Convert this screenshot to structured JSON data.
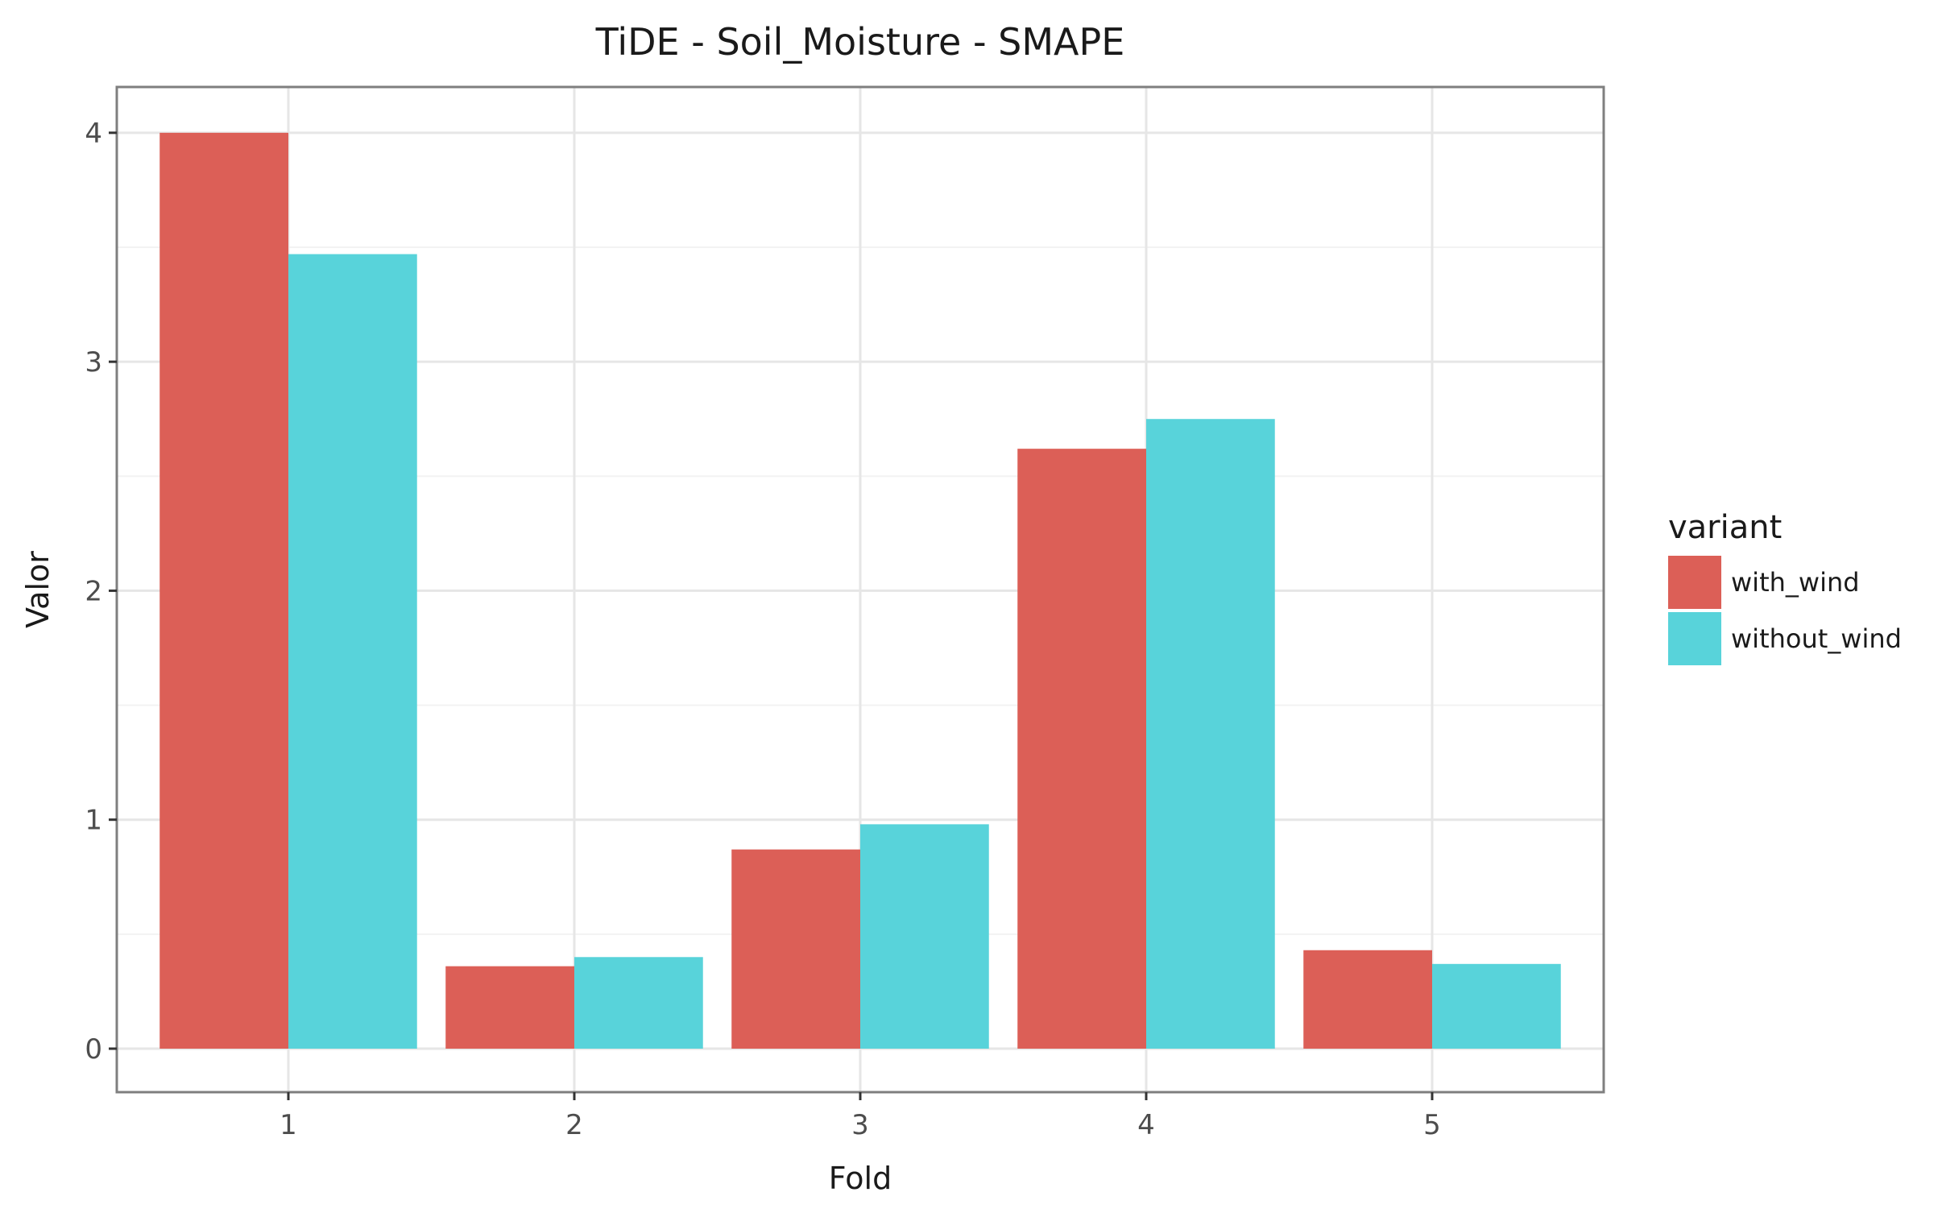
{
  "chart_data": {
    "type": "bar",
    "title": "TiDE - Soil_Moisture - SMAPE",
    "xlabel": "Fold",
    "ylabel": "Valor",
    "categories": [
      "1",
      "2",
      "3",
      "4",
      "5"
    ],
    "series": [
      {
        "name": "with_wind",
        "color": "#dc5f57",
        "values": [
          4.0,
          0.36,
          0.87,
          2.62,
          0.43
        ]
      },
      {
        "name": "without_wind",
        "color": "#58d3da",
        "values": [
          3.47,
          0.4,
          0.98,
          2.75,
          0.37
        ]
      }
    ],
    "ylim": [
      -0.19,
      4.2
    ],
    "yticks": [
      "0",
      "1",
      "2",
      "3",
      "4"
    ],
    "grid": true,
    "legend": {
      "title": "variant",
      "position": "right"
    }
  }
}
